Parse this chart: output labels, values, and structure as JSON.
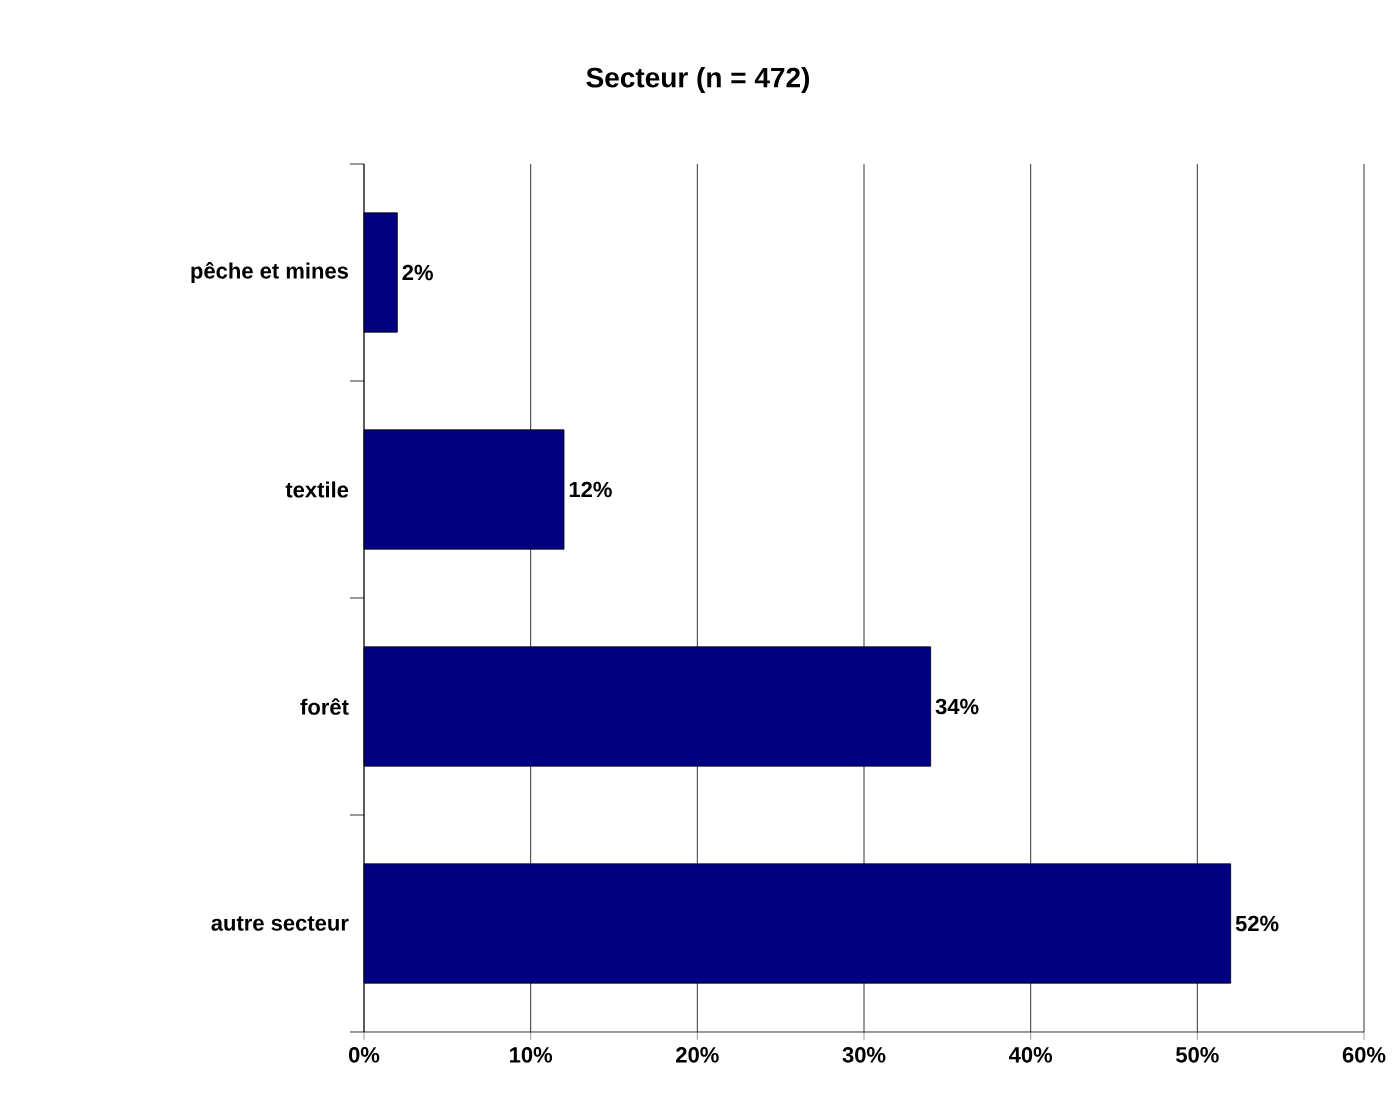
{
  "chart_data": {
    "type": "bar",
    "orientation": "horizontal",
    "title": "Secteur (n = 472)",
    "categories": [
      "pêche et mines",
      "textile",
      "forêt",
      "autre secteur"
    ],
    "values": [
      2,
      12,
      34,
      52
    ],
    "value_labels": [
      "2%",
      "12%",
      "34%",
      "52%"
    ],
    "color": "#000080",
    "xlim": [
      0,
      60
    ],
    "xticks": [
      {
        "value": 0,
        "label": "0%"
      },
      {
        "value": 10,
        "label": "10%"
      },
      {
        "value": 20,
        "label": "20%"
      },
      {
        "value": 30,
        "label": "30%"
      },
      {
        "value": 40,
        "label": "40%"
      },
      {
        "value": 50,
        "label": "50%"
      },
      {
        "value": 60,
        "label": "60%"
      }
    ],
    "grid": "x"
  }
}
